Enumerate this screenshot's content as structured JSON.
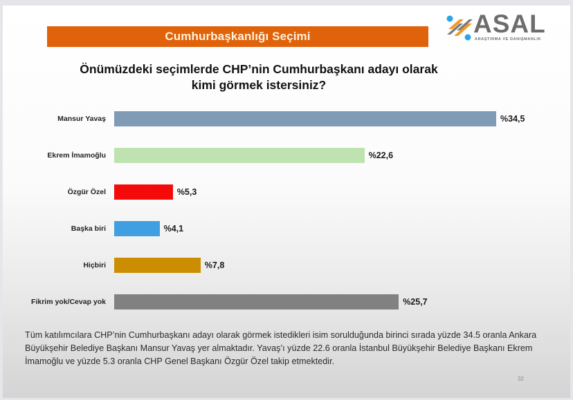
{
  "header": {
    "banner_title": "Cumhurbaşkanlığı Seçimi",
    "banner_color": "#e0620b",
    "logo": {
      "name": "ASAL",
      "subtitle": "ARAŞTIRMA VE DANIŞMANLIK",
      "icon": "asal-logo-icon"
    }
  },
  "question": {
    "line1": "Önümüzdeki seçimlerde CHP’nin Cumhurbaşkanı adayı olarak",
    "line2": "kimi görmek istersiniz?"
  },
  "chart_data": {
    "type": "bar",
    "orientation": "horizontal",
    "title": "Önümüzdeki seçimlerde CHP’nin Cumhurbaşkanı adayı olarak kimi görmek istersiniz?",
    "categories": [
      "Mansur Yavaş",
      "Ekrem İmamoğlu",
      "Özgür Özel",
      "Başka biri",
      "Hiçbiri",
      "Fikrim yok/Cevap yok"
    ],
    "values": [
      34.5,
      22.6,
      5.3,
      4.1,
      7.8,
      25.7
    ],
    "value_labels": [
      "%34,5",
      "%22,6",
      "%5,3",
      "%4,1",
      "%7,8",
      "%25,7"
    ],
    "colors": [
      "#7f9bb5",
      "#bfe3b0",
      "#f50a0a",
      "#3f9fe0",
      "#cc8e00",
      "#818181"
    ],
    "xlabel": "",
    "ylabel": "",
    "xlim": [
      0,
      35
    ],
    "grid": false,
    "legend": "none",
    "unit": "%"
  },
  "bars": [
    {
      "label": "Mansur Yavaş",
      "value_label": "%34,5"
    },
    {
      "label": "Ekrem İmamoğlu",
      "value_label": "%22,6"
    },
    {
      "label": "Özgür Özel",
      "value_label": "%5,3"
    },
    {
      "label": "Başka biri",
      "value_label": "%4,1"
    },
    {
      "label": "Hiçbiri",
      "value_label": "%7,8"
    },
    {
      "label": "Fikrim yok/Cevap yok",
      "value_label": "%25,7"
    }
  ],
  "note": "Tüm katılımcılara CHP’nin Cumhurbaşkanı adayı olarak görmek istedikleri isim sorulduğunda birinci sırada yüzde 34.5 oranla Ankara Büyükşehir Belediye Başkanı Mansur Yavaş yer almaktadır. Yavaş’ı yüzde 22.6 oranla İstanbul Büyükşehir Belediye Başkanı Ekrem İmamoğlu ve yüzde 5.3 oranla CHP Genel Başkanı Özgür Özel takip etmektedir.",
  "page_number": "32"
}
